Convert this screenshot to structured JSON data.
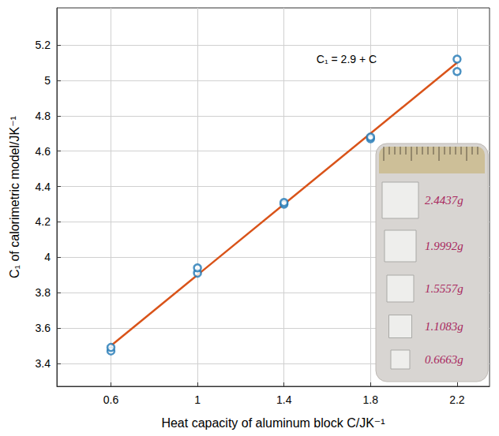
{
  "chart_data": {
    "type": "scatter",
    "x_label": "Heat capacity of aluminum block C/JK⁻¹",
    "y_label": "C₁ of calorimetric model/JK⁻¹",
    "annotations": [
      "C₁ = 2.9 + C"
    ],
    "inset_labels": [
      "2.4437g",
      "1.9992g",
      "1.5557g",
      "1.1083g",
      "0.6663g"
    ],
    "series": [
      {
        "type": "scatter",
        "color": "#1f77b4",
        "marker": "circle-open",
        "x": [
          0.6,
          0.6,
          1.0,
          1.0,
          1.4,
          1.4,
          1.8,
          1.8,
          2.2,
          2.2
        ],
        "values": [
          3.47,
          3.49,
          3.91,
          3.94,
          4.3,
          4.31,
          4.67,
          4.68,
          5.05,
          5.12
        ]
      },
      {
        "type": "line",
        "color": "#d95319",
        "line_style": "solid",
        "x": [
          0.6,
          2.2
        ],
        "values": [
          3.5,
          5.1
        ]
      }
    ],
    "xlim": [
      0.35,
      2.35
    ],
    "xticks": [
      0.6,
      1,
      1.4,
      1.8,
      2.2
    ],
    "ylim": [
      3.27,
      5.41
    ],
    "yticks": [
      3.4,
      3.6,
      3.8,
      4,
      4.2,
      4.4,
      4.6,
      4.8,
      5,
      5.2
    ],
    "grid": true
  }
}
